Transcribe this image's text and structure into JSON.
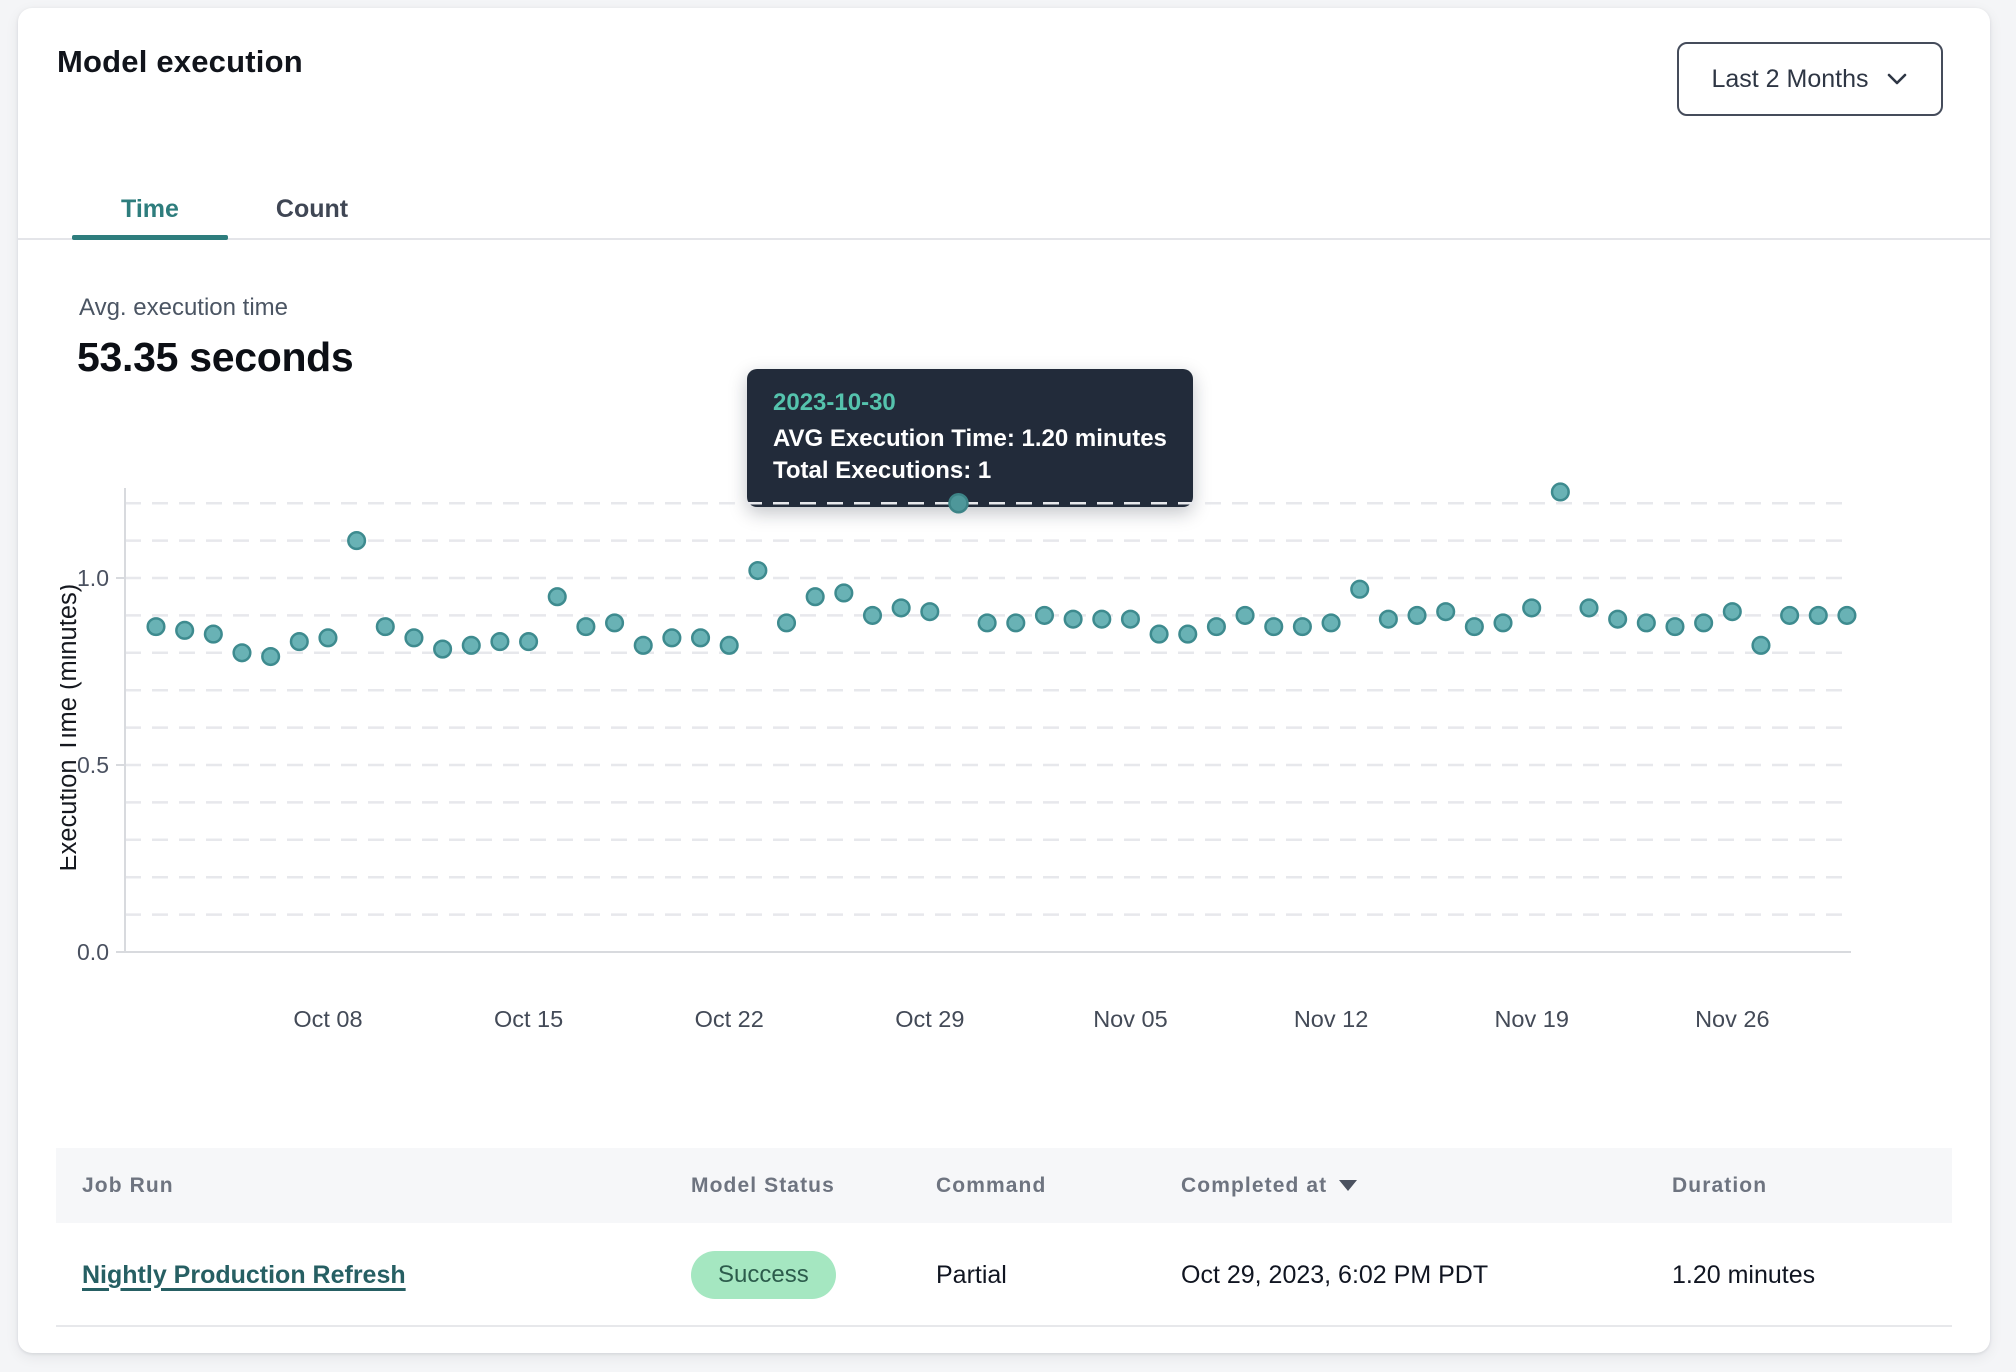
{
  "header": {
    "title": "Model execution",
    "range_selector": {
      "value": "Last 2 Months"
    }
  },
  "tabs": [
    {
      "label": "Time",
      "active": true
    },
    {
      "label": "Count",
      "active": false
    }
  ],
  "summary": {
    "label": "Avg. execution time",
    "value": "53.35 seconds"
  },
  "tooltip": {
    "date": "2023-10-30",
    "line1": "AVG Execution Time: 1.20 minutes",
    "line2": "Total Executions: 1"
  },
  "chart_data": {
    "type": "scatter",
    "title": "",
    "xlabel": "",
    "ylabel": "Execution Time (minutes)",
    "ylim": [
      0,
      1.25
    ],
    "grid": "horizontal dashed lines every 0.1 from 0.1 to 1.2",
    "legend": "none",
    "y_ticks": [
      0.0,
      0.5,
      1.0
    ],
    "x_ticks": [
      {
        "date": "2023-10-08",
        "label": "Oct 08"
      },
      {
        "date": "2023-10-15",
        "label": "Oct 15"
      },
      {
        "date": "2023-10-22",
        "label": "Oct 22"
      },
      {
        "date": "2023-10-29",
        "label": "Oct 29"
      },
      {
        "date": "2023-11-05",
        "label": "Nov 05"
      },
      {
        "date": "2023-11-12",
        "label": "Nov 12"
      },
      {
        "date": "2023-11-19",
        "label": "Nov 19"
      },
      {
        "date": "2023-11-26",
        "label": "Nov 26"
      }
    ],
    "highlight": {
      "date": "2023-10-30",
      "value": 1.2
    },
    "dates": [
      "2023-10-02",
      "2023-10-03",
      "2023-10-04",
      "2023-10-05",
      "2023-10-06",
      "2023-10-07",
      "2023-10-08",
      "2023-10-09",
      "2023-10-10",
      "2023-10-11",
      "2023-10-12",
      "2023-10-13",
      "2023-10-14",
      "2023-10-15",
      "2023-10-16",
      "2023-10-17",
      "2023-10-18",
      "2023-10-19",
      "2023-10-20",
      "2023-10-21",
      "2023-10-22",
      "2023-10-23",
      "2023-10-24",
      "2023-10-25",
      "2023-10-26",
      "2023-10-27",
      "2023-10-28",
      "2023-10-29",
      "2023-10-30",
      "2023-10-31",
      "2023-11-01",
      "2023-11-02",
      "2023-11-03",
      "2023-11-04",
      "2023-11-05",
      "2023-11-06",
      "2023-11-07",
      "2023-11-08",
      "2023-11-09",
      "2023-11-10",
      "2023-11-11",
      "2023-11-12",
      "2023-11-13",
      "2023-11-14",
      "2023-11-15",
      "2023-11-16",
      "2023-11-17",
      "2023-11-18",
      "2023-11-19",
      "2023-11-20",
      "2023-11-21",
      "2023-11-22",
      "2023-11-23",
      "2023-11-24",
      "2023-11-25",
      "2023-11-26",
      "2023-11-27",
      "2023-11-28",
      "2023-11-29",
      "2023-11-30"
    ],
    "values": [
      0.87,
      0.86,
      0.85,
      0.8,
      0.79,
      0.83,
      0.84,
      1.1,
      0.87,
      0.84,
      0.81,
      0.82,
      0.83,
      0.83,
      0.95,
      0.87,
      0.88,
      0.82,
      0.84,
      0.84,
      0.82,
      1.02,
      0.88,
      0.95,
      0.96,
      0.9,
      0.92,
      0.91,
      1.2,
      0.88,
      0.88,
      0.9,
      0.89,
      0.89,
      0.89,
      0.85,
      0.85,
      0.87,
      0.9,
      0.87,
      0.87,
      0.88,
      0.97,
      0.89,
      0.9,
      0.91,
      0.87,
      0.88,
      0.92,
      1.23,
      0.92,
      0.89,
      0.88,
      0.87,
      0.88,
      0.91,
      0.82,
      0.9,
      0.9,
      0.9
    ]
  },
  "table": {
    "headers": [
      "Job Run",
      "Model Status",
      "Command",
      "Completed at",
      "Duration"
    ],
    "sorted_by": "Completed at",
    "rows": [
      {
        "job_run": "Nightly Production Refresh",
        "model_status": "Success",
        "command": "Partial",
        "completed_at": "Oct 29, 2023, 6:02 PM PDT",
        "duration": "1.20 minutes"
      }
    ]
  },
  "colors": {
    "accent_teal": "#2e7d7d",
    "point_fill": "#69b2b5",
    "point_stroke": "#3e8b8f",
    "point_highlight_fill": "#4e979a",
    "point_highlight_stroke": "#3d8487",
    "grid_line": "#e7e8ec",
    "axis_line": "#d8dade",
    "tick_text": "#4a5160",
    "tooltip_bg": "#222b3a",
    "tooltip_date": "#55c3ad",
    "badge_bg": "#a5e7c1",
    "badge_text": "#2c5c4c",
    "link_teal": "#265f63"
  }
}
